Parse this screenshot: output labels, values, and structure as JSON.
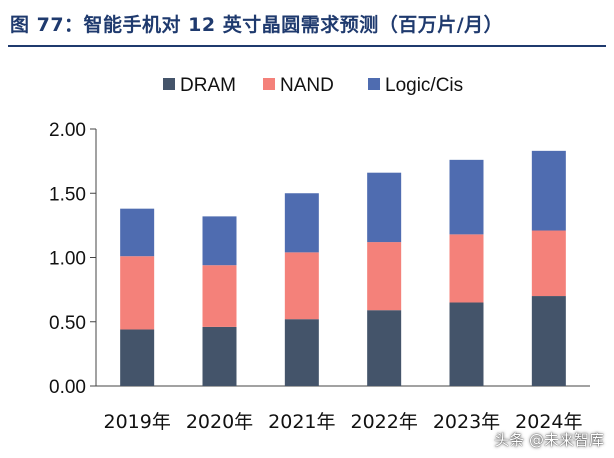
{
  "colors": {
    "title": "#1f3a6e",
    "DRAM": "#44546a",
    "NAND": "#f4817a",
    "Logic/Cis": "#4f6cb0",
    "axis": "#444444",
    "text": "#111111"
  },
  "watermark": "头条 @未来智库",
  "chart_data": {
    "type": "bar",
    "stacked": true,
    "title": "图 77：智能手机对 12 英寸晶圆需求预测（百万片/月）",
    "categories": [
      "2019年",
      "2020年",
      "2021年",
      "2022年",
      "2023年",
      "2024年"
    ],
    "series": [
      {
        "name": "DRAM",
        "values": [
          0.44,
          0.46,
          0.52,
          0.59,
          0.65,
          0.7
        ]
      },
      {
        "name": "NAND",
        "values": [
          0.57,
          0.48,
          0.52,
          0.53,
          0.53,
          0.51
        ]
      },
      {
        "name": "Logic/Cis",
        "values": [
          0.37,
          0.38,
          0.46,
          0.54,
          0.58,
          0.62
        ]
      }
    ],
    "ylim": [
      0,
      2.0
    ],
    "yticks": [
      "0.00",
      "0.50",
      "1.00",
      "1.50",
      "2.00"
    ],
    "ytick_values": [
      0,
      0.5,
      1.0,
      1.5,
      2.0
    ],
    "legend_position": "top",
    "grid": false
  }
}
